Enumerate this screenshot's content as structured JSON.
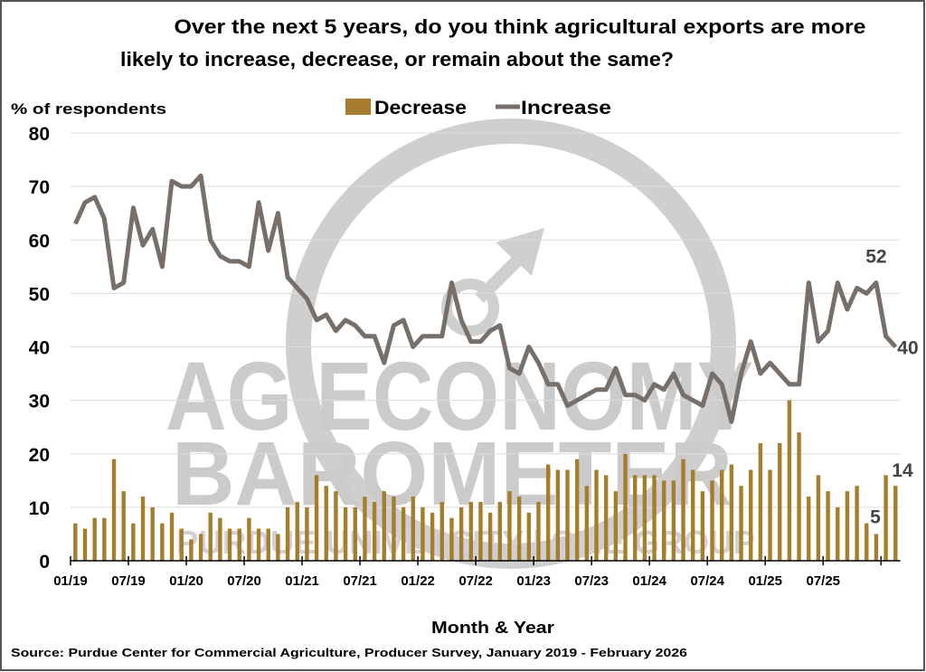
{
  "chart_data": {
    "type": "bar+line",
    "title_lines": [
      "Over the next 5 years, do you think agricultural exports are more",
      "likely to increase, decrease, or remain about the same?"
    ],
    "ylabel": "% of respondents",
    "xlabel": "Month & Year",
    "source": "Source: Purdue Center for Commercial Agriculture, Producer Survey, January 2019 - February 2026",
    "ylim": [
      0,
      80
    ],
    "yticks": [
      0,
      10,
      20,
      30,
      40,
      50,
      60,
      70,
      80
    ],
    "grid": true,
    "legend_placement": "top-center",
    "x_start": "01/19",
    "x_end": "02/26",
    "xtick_labels": [
      "01/19",
      "07/19",
      "01/20",
      "07/20",
      "01/21",
      "07/21",
      "01/22",
      "07/22",
      "01/23",
      "07/23",
      "01/24",
      "07/24",
      "01/25",
      "07/25"
    ],
    "series": [
      {
        "name": "Decrease",
        "type": "bar",
        "color": "#a67c2e",
        "values": [
          7,
          6,
          8,
          8,
          19,
          13,
          7,
          12,
          10,
          7,
          9,
          6,
          4,
          5,
          9,
          8,
          6,
          6,
          8,
          6,
          6,
          5,
          10,
          11,
          10,
          16,
          14,
          13,
          10,
          10,
          12,
          11,
          13,
          12,
          10,
          12,
          10,
          9,
          11,
          8,
          10,
          11,
          11,
          9,
          11,
          13,
          12,
          9,
          11,
          18,
          17,
          17,
          19,
          14,
          17,
          16,
          13,
          20,
          16,
          16,
          16,
          15,
          15,
          19,
          17,
          13,
          15,
          17,
          18,
          14,
          17,
          22,
          17,
          22,
          30,
          24,
          12,
          16,
          13,
          10,
          13,
          14,
          7,
          5,
          16,
          14
        ]
      },
      {
        "name": "Increase",
        "type": "line",
        "color": "#77706a",
        "values": [
          63,
          67,
          68,
          64,
          51,
          52,
          66,
          59,
          62,
          55,
          71,
          70,
          70,
          72,
          60,
          57,
          56,
          56,
          55,
          67,
          58,
          65,
          53,
          51,
          49,
          45,
          46,
          43,
          45,
          44,
          42,
          42,
          37,
          44,
          45,
          40,
          42,
          42,
          42,
          52,
          45,
          41,
          41,
          43,
          44,
          36,
          35,
          40,
          37,
          33,
          33,
          29,
          30,
          31,
          32,
          32,
          36,
          31,
          31,
          30,
          33,
          32,
          35,
          31,
          30,
          29,
          35,
          33,
          26,
          35,
          41,
          35,
          37,
          35,
          33,
          33,
          52,
          41,
          43,
          52,
          47,
          51,
          50,
          52,
          42,
          40
        ]
      }
    ],
    "data_labels": [
      {
        "series": "Increase",
        "index": 83,
        "text": "52"
      },
      {
        "series": "Increase",
        "index": 85,
        "text": "40"
      },
      {
        "series": "Decrease",
        "index": 85,
        "text": "14"
      },
      {
        "series": "Decrease",
        "index": 83,
        "text": "5"
      }
    ]
  },
  "watermark": {
    "line1": "AG ECONOMY",
    "line2": "BAROMETER",
    "line3": "PURDUE UNIVERSITY | CME GROUP"
  }
}
